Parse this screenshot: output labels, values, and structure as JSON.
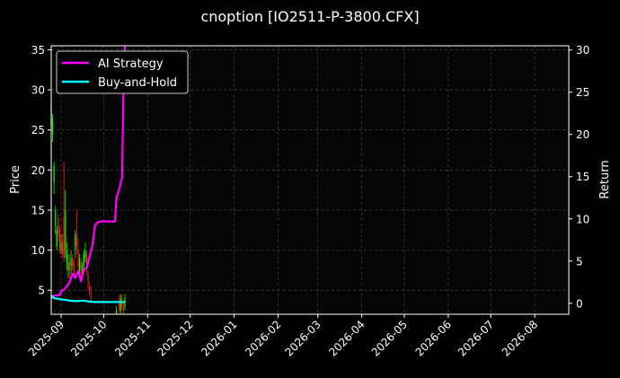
{
  "chart_data": {
    "type": "line",
    "title": "cnoption [IO2511-P-3800.CFX]",
    "ylabel_left": "Price",
    "ylabel_right": "Return",
    "ylim_left": [
      2,
      35.5
    ],
    "ylim_right": [
      -1.3,
      30.5
    ],
    "yticks_left": [
      5,
      10,
      15,
      20,
      25,
      30,
      35
    ],
    "yticks_right": [
      0,
      5,
      10,
      15,
      20,
      25,
      30
    ],
    "xlim": [
      "2025-08-25",
      "2026-08-25"
    ],
    "xticks": [
      "2025-09",
      "2025-10",
      "2025-11",
      "2025-12",
      "2026-01",
      "2026-02",
      "2026-03",
      "2026-04",
      "2026-05",
      "2026-06",
      "2026-07",
      "2026-08"
    ],
    "xtick_dates": [
      "2025-09-01",
      "2025-10-01",
      "2025-11-01",
      "2025-12-01",
      "2026-01-01",
      "2026-02-01",
      "2026-03-01",
      "2026-04-01",
      "2026-05-01",
      "2026-06-01",
      "2026-07-01",
      "2026-08-01"
    ],
    "grid": true,
    "legend_position": "top-left",
    "colors": {
      "background": "#000000",
      "grid": "#555555",
      "axes": "#ffffff",
      "up": "#00ff00",
      "down": "#ff2020",
      "ai_strategy": "#ff00ff",
      "buy_hold": "#00ffff"
    },
    "candles": [
      {
        "date": "2025-08-25",
        "open": 25.5,
        "close": 28.5,
        "high": 30.0,
        "low": 24.5
      },
      {
        "date": "2025-08-26",
        "open": 24.5,
        "close": 26.5,
        "high": 27.0,
        "low": 23.5
      },
      {
        "date": "2025-08-27",
        "open": 18.5,
        "close": 20.5,
        "high": 21.0,
        "low": 17.0
      },
      {
        "date": "2025-08-28",
        "open": 13.0,
        "close": 15.0,
        "high": 15.5,
        "low": 12.0
      },
      {
        "date": "2025-08-29",
        "open": 10.5,
        "close": 12.5,
        "high": 13.0,
        "low": 10.0
      },
      {
        "date": "2025-08-30",
        "open": 14.0,
        "close": 12.0,
        "high": 14.5,
        "low": 11.0
      },
      {
        "date": "2025-08-31",
        "open": 12.5,
        "close": 10.0,
        "high": 13.0,
        "low": 9.5
      },
      {
        "date": "2025-09-01",
        "open": 10.0,
        "close": 11.0,
        "high": 12.0,
        "low": 9.5
      },
      {
        "date": "2025-09-02",
        "open": 11.0,
        "close": 9.5,
        "high": 12.0,
        "low": 9.0
      },
      {
        "date": "2025-09-03",
        "open": 14.0,
        "close": 9.0,
        "high": 21.0,
        "low": 8.5
      },
      {
        "date": "2025-09-04",
        "open": 10.0,
        "close": 15.0,
        "high": 17.5,
        "low": 9.0
      },
      {
        "date": "2025-09-05",
        "open": 8.5,
        "close": 10.0,
        "high": 11.0,
        "low": 7.5
      },
      {
        "date": "2025-09-06",
        "open": 7.5,
        "close": 8.5,
        "high": 9.5,
        "low": 6.5
      },
      {
        "date": "2025-09-07",
        "open": 8.5,
        "close": 7.5,
        "high": 9.5,
        "low": 6.5
      },
      {
        "date": "2025-09-08",
        "open": 8.0,
        "close": 9.0,
        "high": 10.0,
        "low": 7.0
      },
      {
        "date": "2025-09-09",
        "open": 9.0,
        "close": 8.0,
        "high": 9.5,
        "low": 7.5
      },
      {
        "date": "2025-09-10",
        "open": 8.5,
        "close": 7.0,
        "high": 9.0,
        "low": 6.5
      },
      {
        "date": "2025-09-11",
        "open": 10.0,
        "close": 12.0,
        "high": 12.5,
        "low": 9.0
      },
      {
        "date": "2025-09-12",
        "open": 12.0,
        "close": 10.5,
        "high": 15.0,
        "low": 9.5
      },
      {
        "date": "2025-09-13",
        "open": 10.0,
        "close": 8.0,
        "high": 11.5,
        "low": 7.5
      },
      {
        "date": "2025-09-14",
        "open": 7.5,
        "close": 9.0,
        "high": 9.5,
        "low": 7.0
      },
      {
        "date": "2025-09-15",
        "open": 8.5,
        "close": 7.0,
        "high": 9.0,
        "low": 6.0
      },
      {
        "date": "2025-09-16",
        "open": 7.0,
        "close": 8.0,
        "high": 8.5,
        "low": 6.5
      },
      {
        "date": "2025-09-17",
        "open": 8.0,
        "close": 9.5,
        "high": 10.0,
        "low": 7.5
      },
      {
        "date": "2025-09-18",
        "open": 9.0,
        "close": 10.0,
        "high": 11.0,
        "low": 8.5
      },
      {
        "date": "2025-09-19",
        "open": 9.5,
        "close": 8.0,
        "high": 10.0,
        "low": 7.0
      },
      {
        "date": "2025-09-20",
        "open": 7.0,
        "close": 6.0,
        "high": 7.5,
        "low": 5.0
      },
      {
        "date": "2025-09-21",
        "open": 5.5,
        "close": 5.0,
        "high": 6.0,
        "low": 4.5
      },
      {
        "date": "2025-09-22",
        "open": 4.5,
        "close": 4.0,
        "high": 5.5,
        "low": 3.5
      },
      {
        "date": "2025-10-10",
        "open": 2.0,
        "close": 2.5,
        "high": 3.0,
        "low": 2.0
      },
      {
        "date": "2025-10-12",
        "open": 3.5,
        "close": 2.5,
        "high": 4.5,
        "low": 2.0
      },
      {
        "date": "2025-10-13",
        "open": 2.5,
        "close": 4.0,
        "high": 4.5,
        "low": 2.0
      },
      {
        "date": "2025-10-14",
        "open": 4.0,
        "close": 3.0,
        "high": 4.5,
        "low": 2.5
      },
      {
        "date": "2025-10-15",
        "open": 3.0,
        "close": 2.5,
        "high": 3.5,
        "low": 2.0
      },
      {
        "date": "2025-10-16",
        "open": 3.0,
        "close": 4.0,
        "high": 4.5,
        "low": 2.5
      }
    ],
    "series": [
      {
        "name": "AI Strategy",
        "x": [
          "2025-08-25",
          "2025-08-27",
          "2025-08-31",
          "2025-09-01",
          "2025-09-03",
          "2025-09-05",
          "2025-09-07",
          "2025-09-09",
          "2025-09-11",
          "2025-09-13",
          "2025-09-15",
          "2025-09-17",
          "2025-09-19",
          "2025-09-21",
          "2025-09-23",
          "2025-09-25",
          "2025-09-27",
          "2025-09-29",
          "2025-10-01",
          "2025-10-05",
          "2025-10-09",
          "2025-10-10",
          "2025-10-12",
          "2025-10-14",
          "2025-10-15",
          "2025-10-16"
        ],
        "y": [
          0.6,
          0.9,
          1.0,
          1.5,
          1.6,
          2.0,
          2.5,
          3.5,
          3.0,
          3.8,
          2.6,
          4.0,
          4.2,
          5.5,
          6.8,
          9.3,
          9.6,
          9.7,
          9.7,
          9.7,
          9.7,
          12.5,
          13.5,
          15.0,
          26.0,
          30.5
        ]
      },
      {
        "name": "Buy-and-Hold",
        "x": [
          "2025-08-25",
          "2025-08-27",
          "2025-08-29",
          "2025-09-01",
          "2025-09-04",
          "2025-09-08",
          "2025-09-12",
          "2025-09-15",
          "2025-09-18",
          "2025-09-21",
          "2025-09-25",
          "2025-10-01",
          "2025-10-08",
          "2025-10-12",
          "2025-10-16"
        ],
        "y": [
          0.9,
          0.6,
          0.55,
          0.45,
          0.4,
          0.3,
          0.25,
          0.3,
          0.3,
          0.2,
          0.15,
          0.15,
          0.15,
          0.15,
          0.15
        ]
      }
    ]
  }
}
